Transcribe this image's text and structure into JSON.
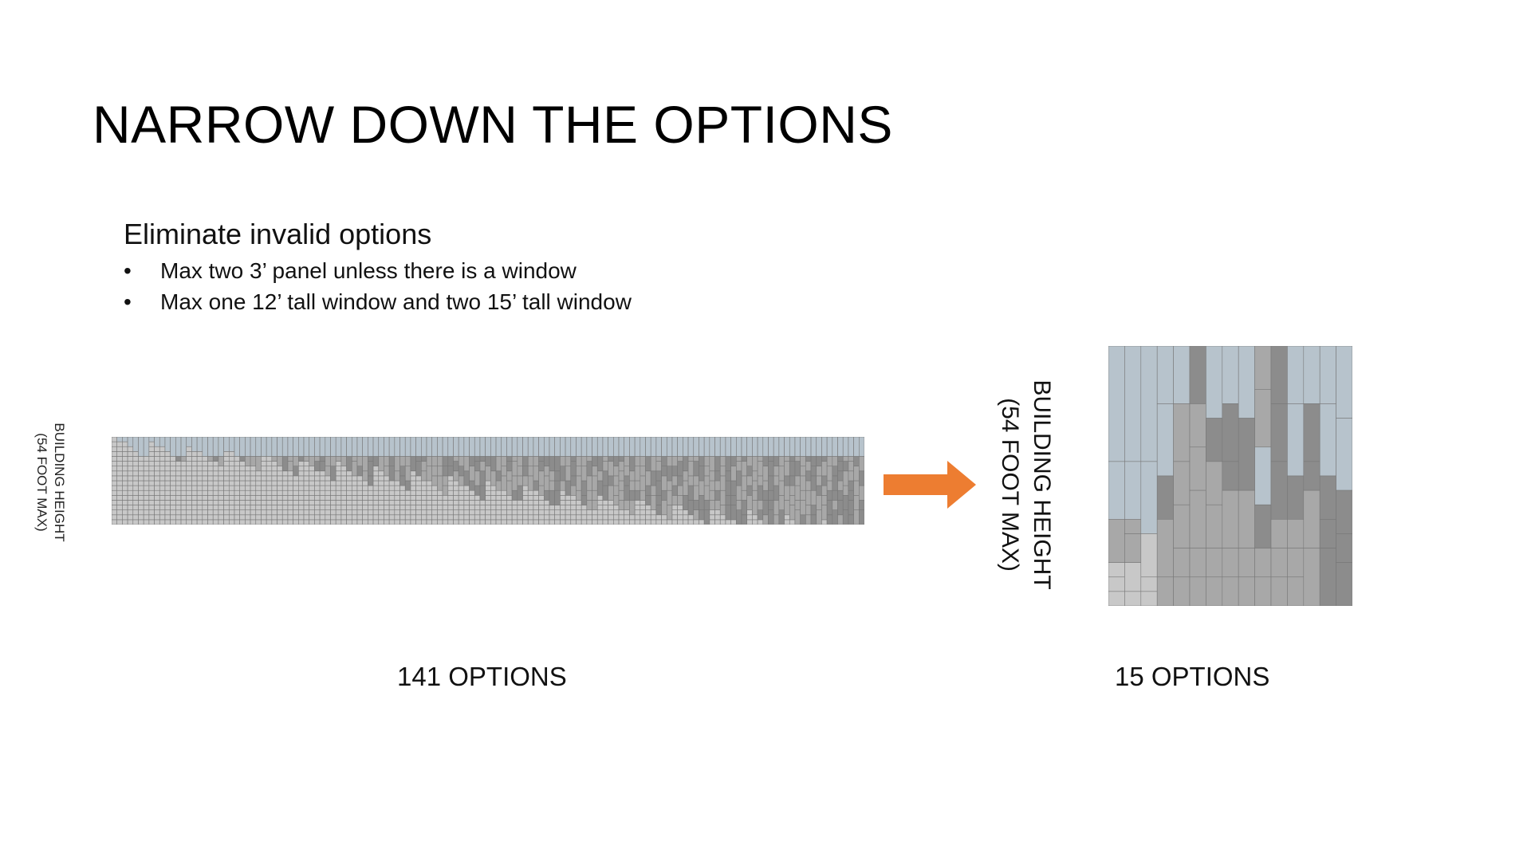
{
  "slide": {
    "title": "NARROW DOWN THE OPTIONS",
    "subheading": "Eliminate invalid options",
    "bullets": [
      "Max two 3’ panel unless there is a window",
      "Max one 12’ tall window and two 15’ tall window"
    ],
    "left_axis_label": {
      "line1": "BUILDING HEIGHT",
      "line2": "(54 FOOT MAX)"
    },
    "right_axis_label": {
      "line1": "BUILDING HEIGHT",
      "line2": "(54 FOOT MAX)"
    },
    "left_caption": "141 OPTIONS",
    "right_caption": "15 OPTIONS"
  },
  "colors": {
    "window": "#b7c3cc",
    "panel_light": "#c8c8c8",
    "panel_mid": "#a8a8a8",
    "panel_dark": "#8c8c8c",
    "grid_line": "#777777",
    "arrow": "#ed7d31"
  },
  "diagram": {
    "building_height_max_ft": 54,
    "left_option_count": 141,
    "right_option_count": 15,
    "arrow_direction": "right"
  }
}
